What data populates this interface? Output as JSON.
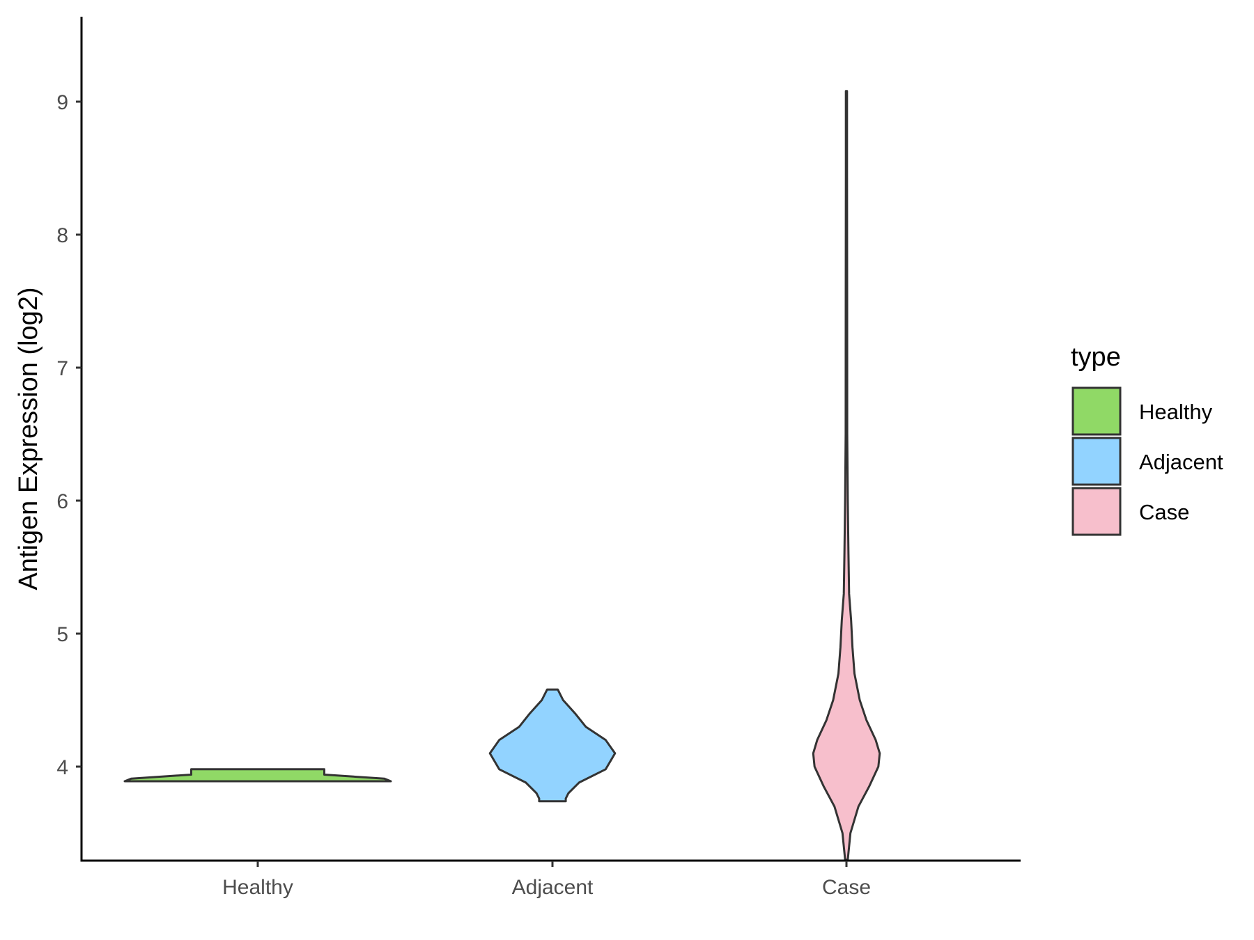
{
  "chart_data": {
    "type": "violin",
    "title": "",
    "xlabel": "",
    "ylabel": "Antigen Expression (log2)",
    "categories": [
      "Healthy",
      "Adjacent",
      "Case"
    ],
    "ylim": [
      3.1,
      9.4
    ],
    "yticks": [
      4,
      5,
      6,
      7,
      8,
      9
    ],
    "grid": false,
    "legend": {
      "title": "type",
      "position": "right",
      "entries": [
        {
          "label": "Healthy",
          "color": "#90d966"
        },
        {
          "label": "Adjacent",
          "color": "#92d3ff"
        },
        {
          "label": "Case",
          "color": "#f7bfcc"
        }
      ]
    },
    "series": [
      {
        "category": "Healthy",
        "color": "#90d966",
        "density": [
          [
            3.89,
            1.0
          ],
          [
            3.91,
            0.95
          ],
          [
            3.94,
            0.5
          ],
          [
            3.96,
            0.5
          ],
          [
            3.98,
            0.5
          ]
        ]
      },
      {
        "category": "Adjacent",
        "color": "#92d3ff",
        "density": [
          [
            3.74,
            0.1
          ],
          [
            3.76,
            0.1
          ],
          [
            3.8,
            0.12
          ],
          [
            3.88,
            0.2
          ],
          [
            3.98,
            0.4
          ],
          [
            4.1,
            0.47
          ],
          [
            4.2,
            0.4
          ],
          [
            4.3,
            0.25
          ],
          [
            4.4,
            0.17
          ],
          [
            4.5,
            0.08
          ],
          [
            4.58,
            0.04
          ]
        ]
      },
      {
        "category": "Case",
        "color": "#f7bfcc",
        "density": [
          [
            3.3,
            0.01
          ],
          [
            3.5,
            0.03
          ],
          [
            3.7,
            0.09
          ],
          [
            3.85,
            0.17
          ],
          [
            4.0,
            0.24
          ],
          [
            4.1,
            0.25
          ],
          [
            4.2,
            0.22
          ],
          [
            4.35,
            0.15
          ],
          [
            4.5,
            0.1
          ],
          [
            4.7,
            0.06
          ],
          [
            4.9,
            0.045
          ],
          [
            5.1,
            0.035
          ],
          [
            5.3,
            0.02
          ],
          [
            5.6,
            0.015
          ],
          [
            6.0,
            0.01
          ],
          [
            6.5,
            0.006
          ],
          [
            7.5,
            0.005
          ],
          [
            8.5,
            0.004
          ],
          [
            9.08,
            0.004
          ]
        ]
      }
    ]
  }
}
